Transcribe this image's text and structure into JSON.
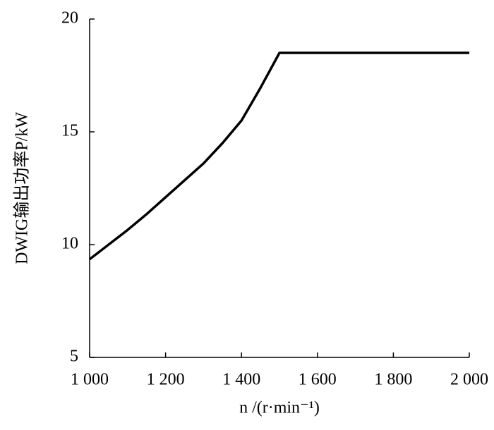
{
  "chart_data": {
    "type": "line",
    "x_label": "n /(r·min⁻¹)",
    "y_label": "DWIG输出功率P/kW",
    "x": [
      1000,
      1050,
      1100,
      1150,
      1200,
      1250,
      1300,
      1350,
      1400,
      1450,
      1500,
      2000
    ],
    "series": [
      {
        "color": "#000000",
        "values": [
          9.35,
          10.0,
          10.65,
          11.35,
          12.1,
          12.85,
          13.6,
          14.5,
          15.5,
          16.95,
          18.5,
          18.5
        ]
      }
    ],
    "xlim": [
      1000,
      2000
    ],
    "xticks": [
      {
        "value": 1000,
        "label": "1 000"
      },
      {
        "value": 1200,
        "label": "1 200"
      },
      {
        "value": 1400,
        "label": "1 400"
      },
      {
        "value": 1600,
        "label": "1 600"
      },
      {
        "value": 1800,
        "label": "1 800"
      },
      {
        "value": 2000,
        "label": "2 000"
      }
    ],
    "ylim": [
      5,
      20
    ],
    "yticks": [
      5,
      10,
      15,
      20
    ]
  }
}
